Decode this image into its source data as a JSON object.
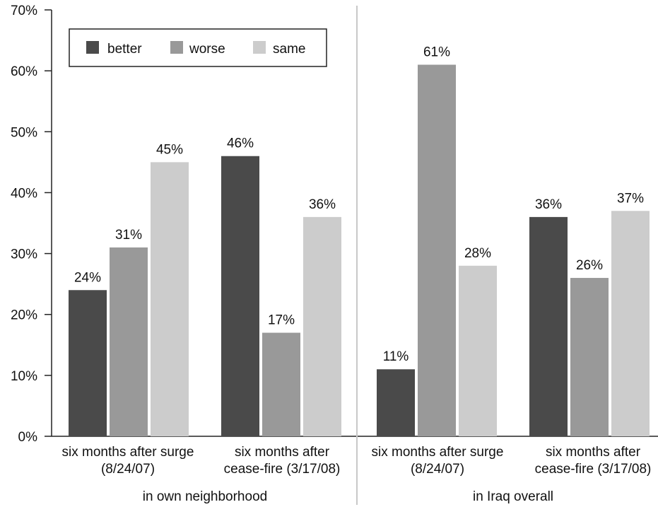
{
  "chart_data": {
    "type": "bar",
    "ylim": [
      0,
      70
    ],
    "y_ticks": [
      "0%",
      "10%",
      "20%",
      "30%",
      "40%",
      "50%",
      "60%",
      "70%"
    ],
    "legend": {
      "placement": "top-left"
    },
    "grid": false,
    "series": [
      {
        "name": "better",
        "color": "#4a4a4a"
      },
      {
        "name": "worse",
        "color": "#999999"
      },
      {
        "name": "same",
        "color": "#cccccc"
      }
    ],
    "panels": [
      {
        "label": "in own neighborhood",
        "categories": [
          {
            "lines": [
              "six months after surge",
              "(8/24/07)"
            ],
            "values": [
              24,
              31,
              45
            ],
            "labels": [
              "24%",
              "31%",
              "45%"
            ]
          },
          {
            "lines": [
              "six months after",
              "cease-fire (3/17/08)"
            ],
            "values": [
              46,
              17,
              36
            ],
            "labels": [
              "46%",
              "17%",
              "36%"
            ]
          }
        ]
      },
      {
        "label": "in Iraq overall",
        "categories": [
          {
            "lines": [
              "six months after surge",
              "(8/24/07)"
            ],
            "values": [
              11,
              61,
              28
            ],
            "labels": [
              "11%",
              "61%",
              "28%"
            ]
          },
          {
            "lines": [
              "six months after",
              "cease-fire (3/17/08)"
            ],
            "values": [
              36,
              26,
              37
            ],
            "labels": [
              "36%",
              "26%",
              "37%"
            ]
          }
        ]
      }
    ]
  }
}
